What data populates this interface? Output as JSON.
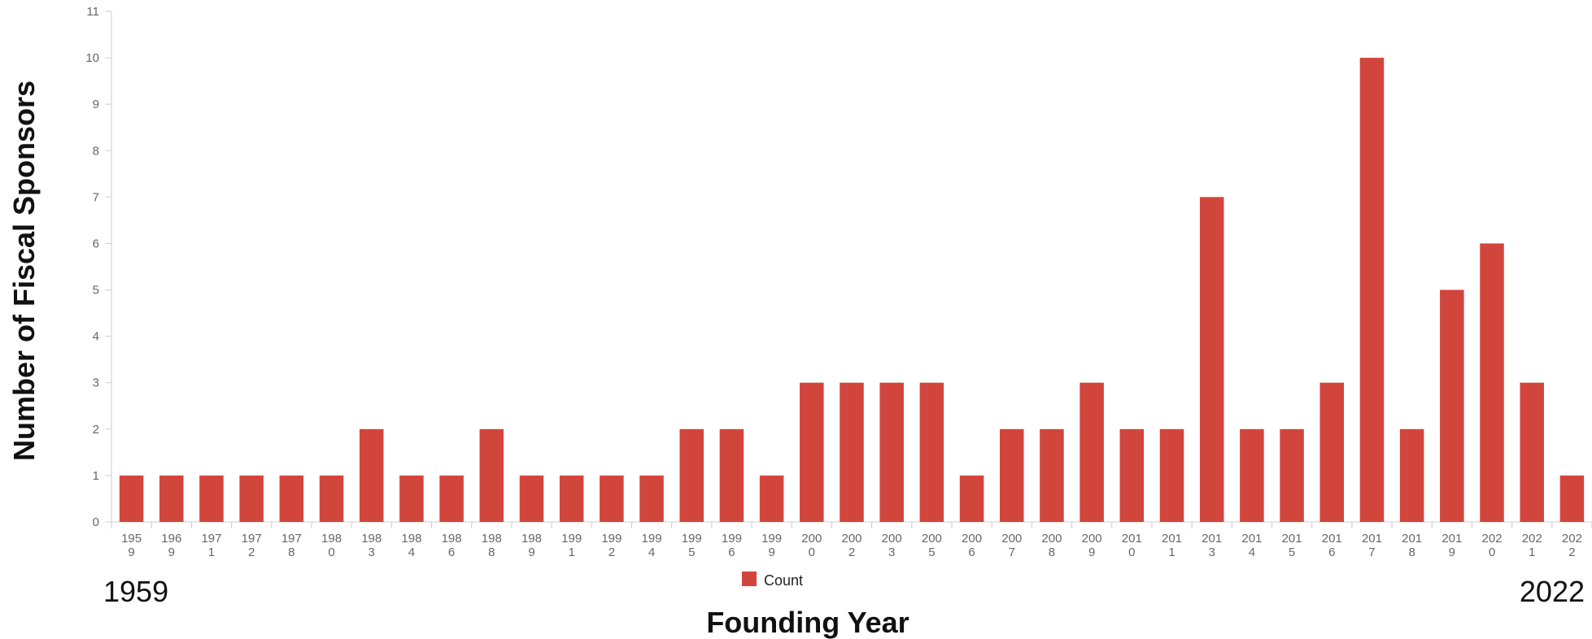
{
  "chart_data": {
    "type": "bar",
    "title": "",
    "xlabel": "Founding Year",
    "ylabel": "Number of Fiscal Sponsors",
    "ylim": [
      0,
      11
    ],
    "yticks": [
      0,
      1,
      2,
      3,
      4,
      5,
      6,
      7,
      8,
      9,
      10,
      11
    ],
    "grid": false,
    "legend_position": "bottom",
    "range_start_label": "1959",
    "range_end_label": "2022",
    "categories": [
      "1959",
      "1969",
      "1971",
      "1972",
      "1978",
      "1980",
      "1983",
      "1984",
      "1986",
      "1988",
      "1989",
      "1991",
      "1992",
      "1994",
      "1995",
      "1996",
      "1999",
      "2000",
      "2002",
      "2003",
      "2005",
      "2006",
      "2007",
      "2008",
      "2009",
      "2010",
      "2011",
      "2013",
      "2014",
      "2015",
      "2016",
      "2017",
      "2018",
      "2019",
      "2020",
      "2021",
      "2022"
    ],
    "series": [
      {
        "name": "Count",
        "color": "#d1453d",
        "values": [
          1,
          1,
          1,
          1,
          1,
          1,
          2,
          1,
          1,
          2,
          1,
          1,
          1,
          1,
          2,
          2,
          1,
          3,
          3,
          3,
          3,
          1,
          2,
          2,
          3,
          2,
          2,
          7,
          2,
          2,
          3,
          10,
          2,
          5,
          6,
          3,
          1
        ]
      }
    ]
  }
}
